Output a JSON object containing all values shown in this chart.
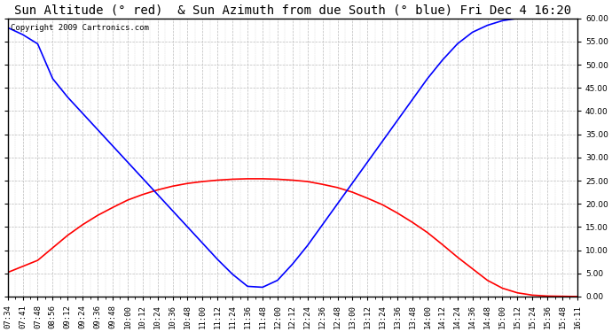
{
  "title": "Sun Altitude (° red)  & Sun Azimuth from due South (° blue) Fri Dec 4 16:20",
  "copyright": "Copyright 2009 Cartronics.com",
  "ylim": [
    0.0,
    60.0
  ],
  "yticks": [
    0.0,
    5.0,
    10.0,
    15.0,
    20.0,
    25.0,
    30.0,
    35.0,
    40.0,
    45.0,
    50.0,
    55.0,
    60.0
  ],
  "x_labels": [
    "07:34",
    "07:41",
    "07:48",
    "08:56",
    "09:12",
    "09:24",
    "09:36",
    "09:48",
    "10:00",
    "10:12",
    "10:24",
    "10:36",
    "10:48",
    "11:00",
    "11:12",
    "11:24",
    "11:36",
    "11:48",
    "12:00",
    "12:12",
    "12:24",
    "12:36",
    "12:48",
    "13:00",
    "13:12",
    "13:24",
    "13:36",
    "13:48",
    "14:00",
    "14:12",
    "14:24",
    "14:36",
    "14:48",
    "15:00",
    "15:12",
    "15:24",
    "15:36",
    "15:48",
    "16:11"
  ],
  "altitude_color": "#ff0000",
  "azimuth_color": "#0000ff",
  "background_color": "#ffffff",
  "grid_color": "#bbbbbb",
  "title_fontsize": 10,
  "copyright_fontsize": 6.5,
  "tick_fontsize": 6.5,
  "ylabel_fontsize": 8,
  "altitude_values": [
    5.2,
    6.5,
    7.8,
    10.5,
    13.2,
    15.5,
    17.5,
    19.2,
    20.8,
    22.0,
    23.0,
    23.8,
    24.4,
    24.8,
    25.1,
    25.3,
    25.4,
    25.4,
    25.3,
    25.1,
    24.8,
    24.2,
    23.5,
    22.5,
    21.2,
    19.8,
    18.0,
    16.0,
    13.8,
    11.2,
    8.5,
    6.0,
    3.5,
    1.8,
    0.8,
    0.3,
    0.1,
    0.05,
    0.0
  ],
  "azimuth_values": [
    58.0,
    56.5,
    54.5,
    47.0,
    43.0,
    39.5,
    36.0,
    32.5,
    29.0,
    25.5,
    22.0,
    18.5,
    15.0,
    11.5,
    8.0,
    4.8,
    2.2,
    2.0,
    3.5,
    7.0,
    11.0,
    15.5,
    20.0,
    24.5,
    29.0,
    33.5,
    38.0,
    42.5,
    47.0,
    51.0,
    54.5,
    57.0,
    58.5,
    59.5,
    60.0,
    60.5,
    61.0,
    61.5,
    62.0
  ]
}
